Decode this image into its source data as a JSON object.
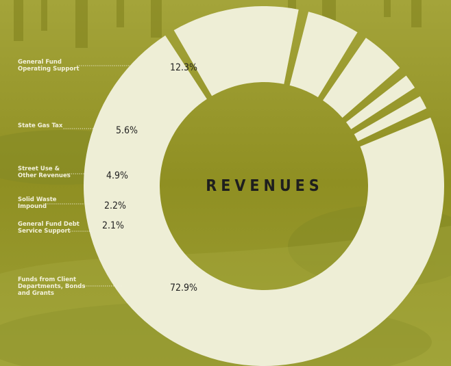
{
  "chart_data": {
    "type": "pie",
    "title": "REVENUES",
    "slices": [
      {
        "label": "Funds from Client Departments, Bonds and Grants",
        "value": 72.9,
        "value_label": "72.9%"
      },
      {
        "label": "General Fund Operating Support",
        "value": 12.3,
        "value_label": "12.3%"
      },
      {
        "label": "State Gas Tax",
        "value": 5.6,
        "value_label": "5.6%"
      },
      {
        "label": "Street Use & Other Revenues",
        "value": 4.9,
        "value_label": "4.9%"
      },
      {
        "label": "Solid Waste Impound",
        "value": 2.2,
        "value_label": "2.2%"
      },
      {
        "label": "General Fund Debt Service Support",
        "value": 2.1,
        "value_label": "2.1%"
      }
    ],
    "style": "donut",
    "colors": {
      "slice": "#eeeed6",
      "background": "#9a9a2a",
      "label_text": "#f3f1dc",
      "value_text": "#222222"
    }
  }
}
